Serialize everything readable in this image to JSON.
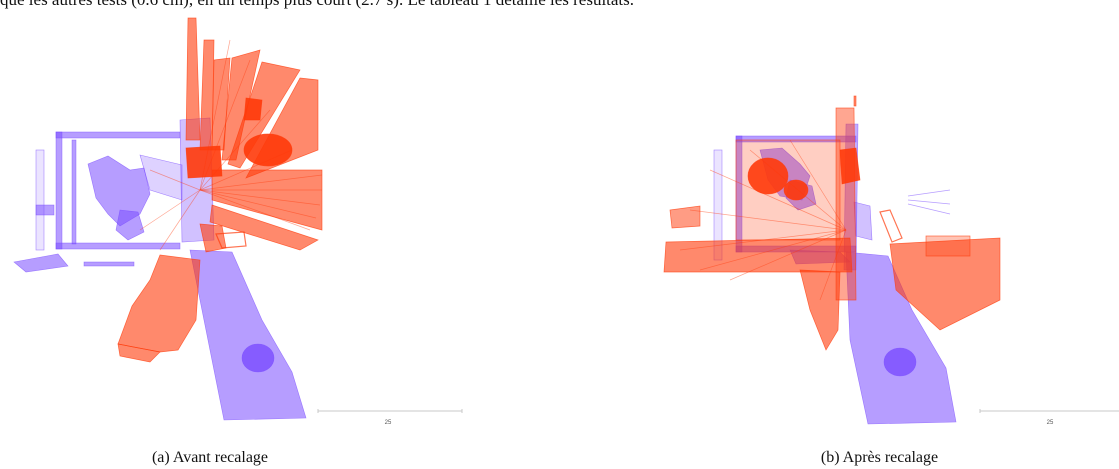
{
  "page": {
    "top_text": "que les autres tests (0.6 cm), en un temps plus court (2.7 s). Le tableau 1 détaille les résultats."
  },
  "figures": [
    {
      "id": "a",
      "caption": "(a) Avant recalage",
      "scale_label": "25"
    },
    {
      "id": "b",
      "caption": "(b) Après recalage",
      "scale_label": "25"
    }
  ],
  "colors": {
    "cloud_source": "#ff3a0a",
    "cloud_target": "#7a4cff",
    "scale_bar": "#c8c8c8"
  }
}
